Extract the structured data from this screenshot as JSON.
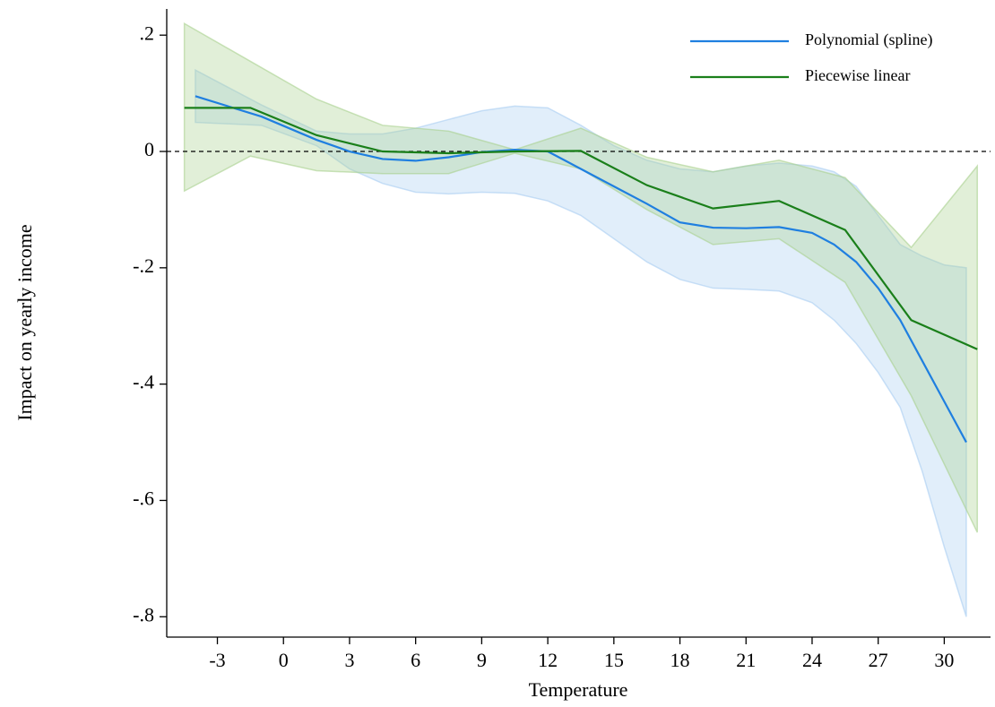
{
  "chart_data": {
    "type": "line",
    "x_label": "Temperature",
    "y_label": "Impact on yearly income",
    "xlim": [
      -5.3,
      32.1
    ],
    "ylim": [
      -0.835,
      0.245
    ],
    "xticks": [
      -3,
      0,
      3,
      6,
      9,
      12,
      15,
      18,
      21,
      24,
      27,
      30
    ],
    "yticks": [
      {
        "value": 0.2,
        "label": ".2"
      },
      0,
      {
        "value": -0.2,
        "label": "-.2"
      },
      {
        "value": -0.4,
        "label": "-.4"
      },
      {
        "value": -0.6,
        "label": "-.6"
      },
      {
        "value": -0.8,
        "label": "-.8"
      }
    ],
    "reference_line": 0,
    "legend": "top-right",
    "series": [
      {
        "name": "Polynomial (spline)",
        "color": "#1f7fe0",
        "band_color": "#a8cdf2",
        "x": [
          -4,
          -1,
          1.5,
          3,
          4.5,
          6,
          7.5,
          9,
          10.5,
          12,
          13.5,
          15,
          16.5,
          18,
          19.5,
          21,
          22.5,
          24,
          25,
          26,
          27,
          28,
          29,
          30,
          31
        ],
        "values": [
          0.095,
          0.06,
          0.02,
          0.0,
          -0.013,
          -0.016,
          -0.01,
          -0.001,
          0.003,
          0,
          -0.03,
          -0.06,
          -0.09,
          -0.122,
          -0.131,
          -0.132,
          -0.13,
          -0.14,
          -0.16,
          -0.19,
          -0.235,
          -0.29,
          -0.36,
          -0.43,
          -0.5
        ],
        "upper": [
          0.14,
          0.08,
          0.035,
          0.03,
          0.03,
          0.04,
          0.055,
          0.07,
          0.078,
          0.075,
          0.045,
          0.01,
          -0.015,
          -0.03,
          -0.035,
          -0.025,
          -0.02,
          -0.025,
          -0.035,
          -0.06,
          -0.11,
          -0.16,
          -0.18,
          -0.195,
          -0.2
        ],
        "lower": [
          0.05,
          0.045,
          0.01,
          -0.03,
          -0.055,
          -0.07,
          -0.073,
          -0.07,
          -0.072,
          -0.085,
          -0.11,
          -0.15,
          -0.19,
          -0.22,
          -0.235,
          -0.237,
          -0.24,
          -0.26,
          -0.29,
          -0.33,
          -0.38,
          -0.44,
          -0.55,
          -0.68,
          -0.8
        ]
      },
      {
        "name": "Piecewise linear",
        "color": "#1a7f1a",
        "band_color": "#a9d18e",
        "x": [
          -4.5,
          -1.5,
          1.5,
          4.5,
          7.5,
          10.5,
          13.5,
          16.5,
          19.5,
          22.5,
          25.5,
          28.5,
          31.5
        ],
        "values": [
          0.075,
          0.075,
          0.028,
          0.0,
          -0.003,
          0,
          0.001,
          -0.058,
          -0.098,
          -0.085,
          -0.135,
          -0.29,
          -0.34
        ],
        "upper": [
          0.22,
          0.155,
          0.09,
          0.045,
          0.035,
          0.003,
          0.04,
          -0.01,
          -0.035,
          -0.015,
          -0.045,
          -0.165,
          -0.025
        ],
        "lower": [
          -0.068,
          -0.008,
          -0.033,
          -0.038,
          -0.038,
          -0.003,
          -0.03,
          -0.1,
          -0.16,
          -0.15,
          -0.225,
          -0.42,
          -0.655
        ]
      }
    ]
  }
}
